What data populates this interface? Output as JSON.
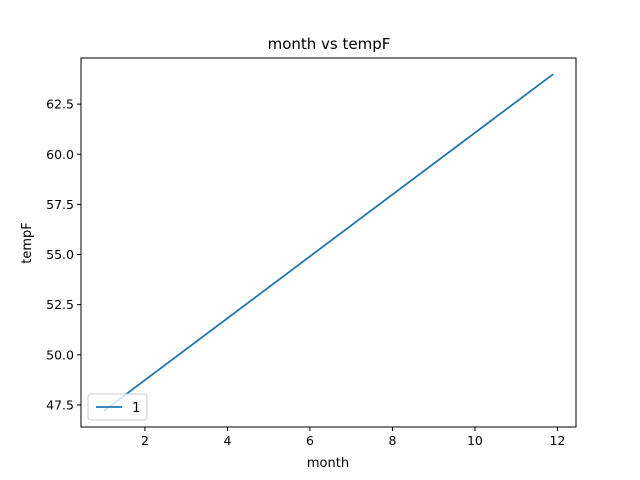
{
  "chart_data": {
    "type": "line",
    "title": "month vs tempF",
    "xlabel": "month",
    "ylabel": "tempF",
    "xlim": [
      0.45,
      12.45
    ],
    "ylim": [
      46.4,
      64.8
    ],
    "xticks": [
      2,
      4,
      6,
      8,
      10,
      12
    ],
    "yticks": [
      47.5,
      50.0,
      52.5,
      55.0,
      57.5,
      60.0,
      62.5
    ],
    "xtick_labels": [
      "2",
      "4",
      "6",
      "8",
      "10",
      "12"
    ],
    "ytick_labels": [
      "47.5",
      "50.0",
      "52.5",
      "55.0",
      "57.5",
      "60.0",
      "62.5"
    ],
    "grid": false,
    "legend_position": "lower-left",
    "series": [
      {
        "name": "1",
        "color": "#1f77b4",
        "x": [
          1,
          11.9
        ],
        "y": [
          47.2,
          64.0
        ]
      }
    ]
  }
}
